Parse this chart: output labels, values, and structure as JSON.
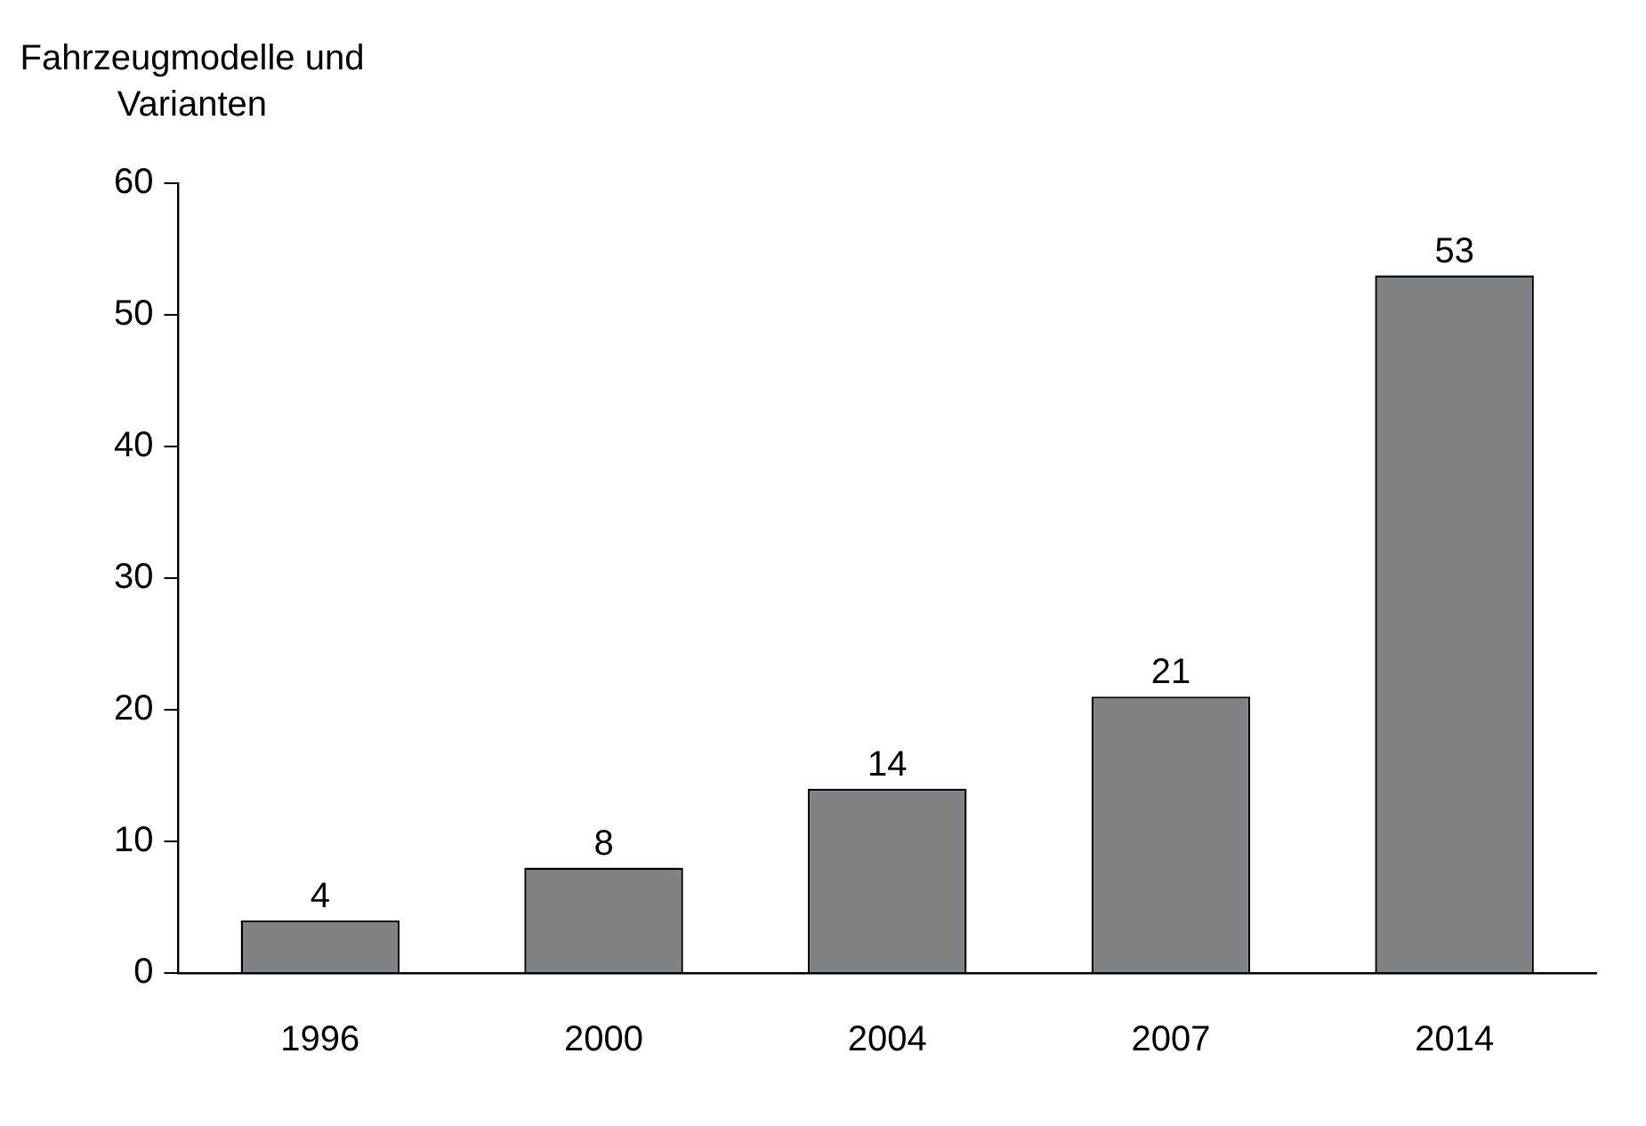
{
  "chart_data": {
    "type": "bar",
    "ylabel": "Fahrzeugmodelle und Varianten",
    "categories": [
      "1996",
      "2000",
      "2004",
      "2007",
      "2014"
    ],
    "values": [
      4,
      8,
      14,
      21,
      53
    ],
    "color": "#7f8385",
    "ylim": [
      0,
      60
    ],
    "yticks": [
      0,
      10,
      20,
      30,
      40,
      50,
      60
    ],
    "grid": false,
    "legend": false,
    "data_labels": true
  }
}
